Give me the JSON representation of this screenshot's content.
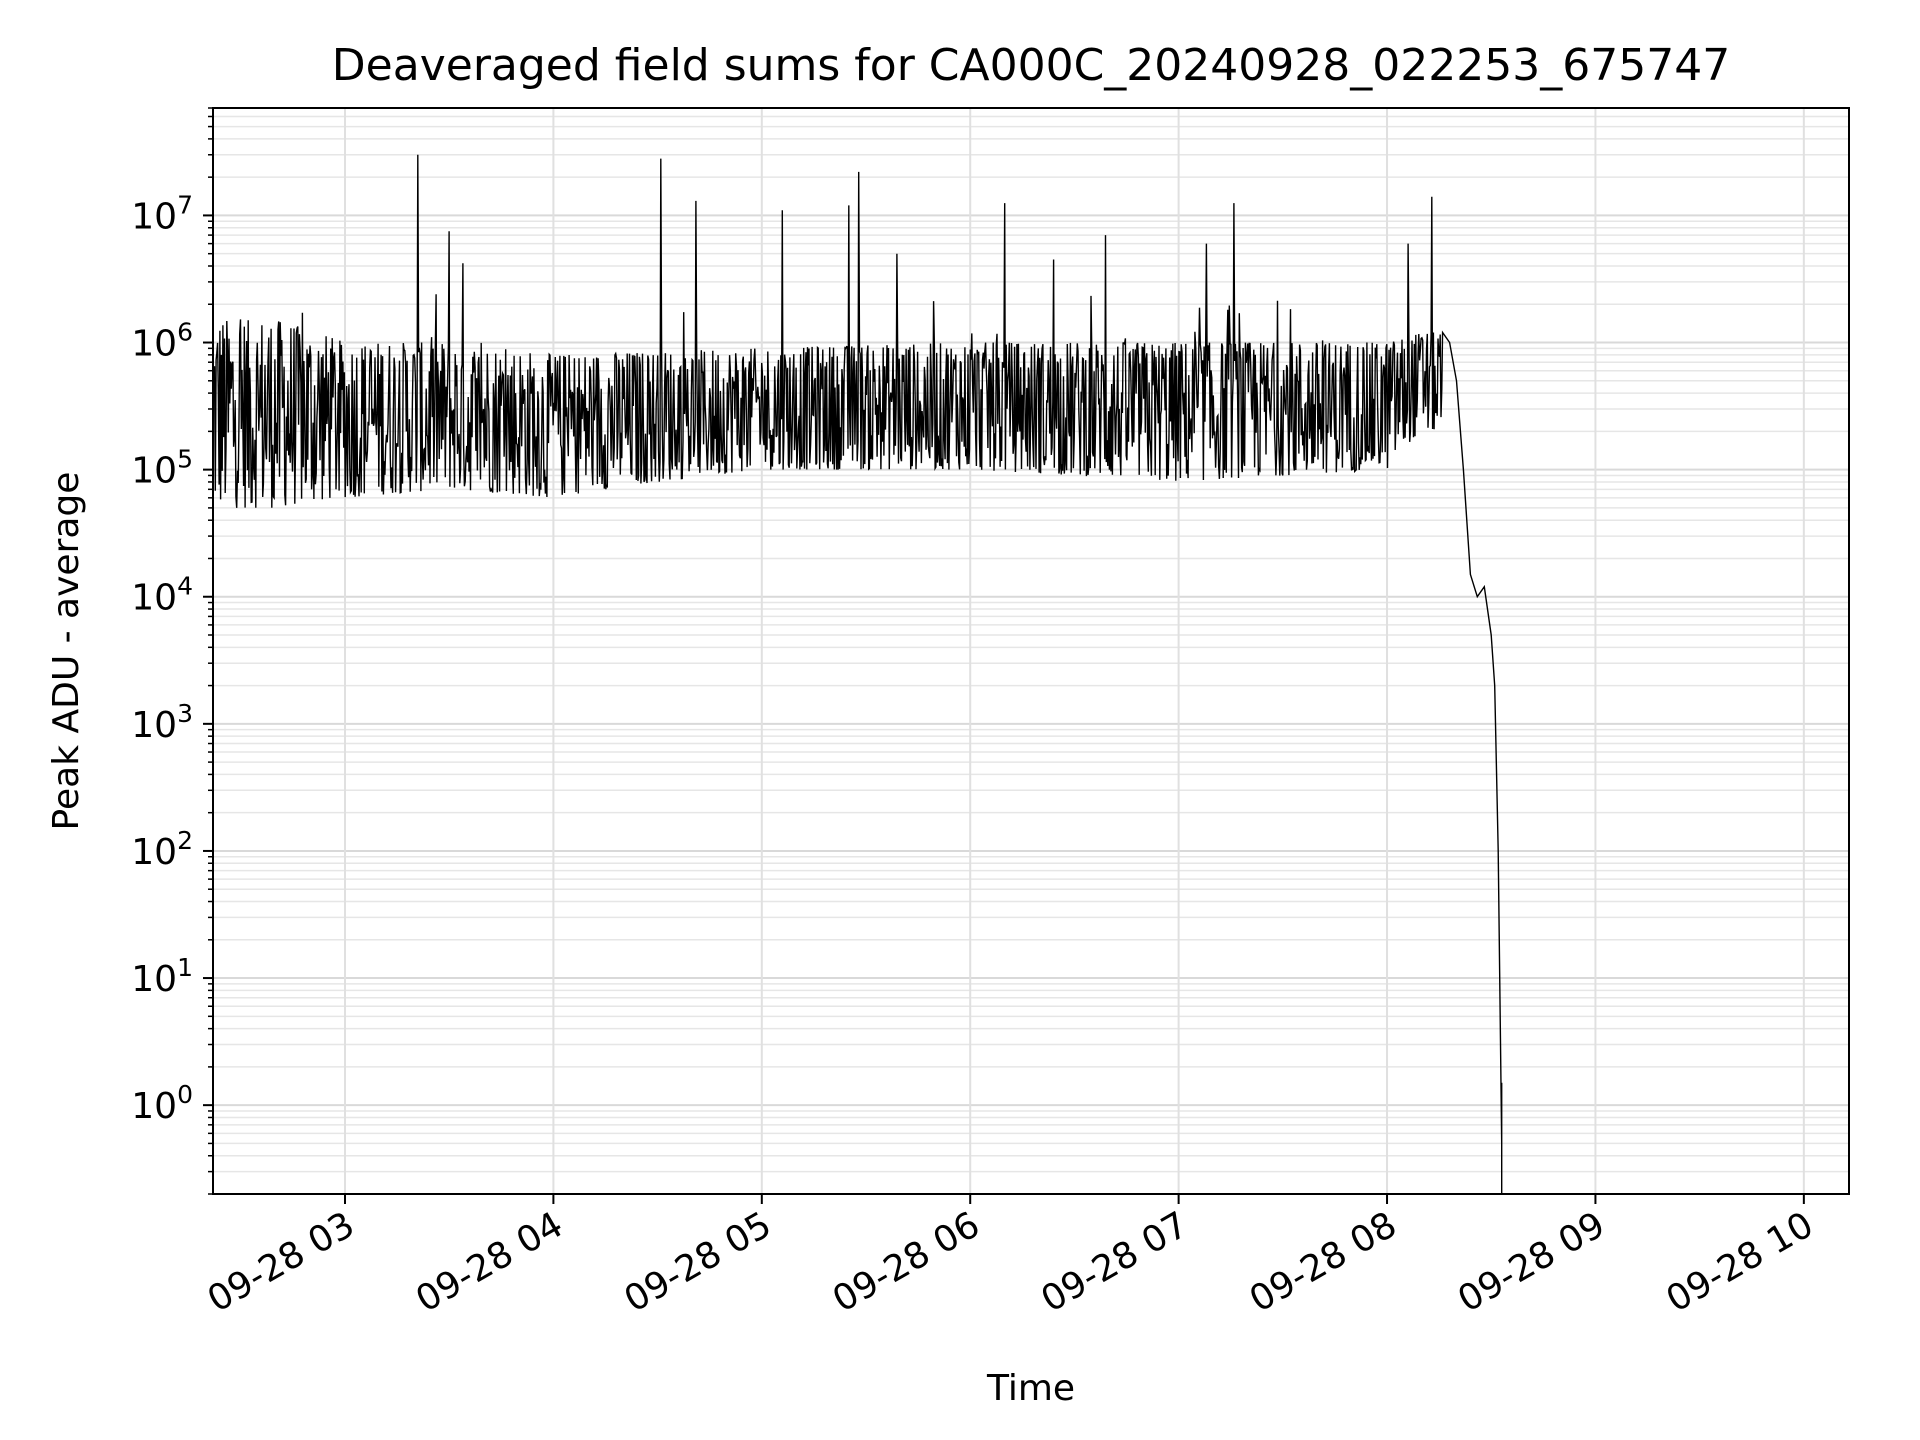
{
  "chart_data": {
    "type": "line",
    "title": "Deaveraged field sums for CA000C_20240928_022253_675747",
    "xlabel": "Time",
    "ylabel": "Peak ADU - average",
    "yscale": "log",
    "ylim": [
      0.2,
      70000000
    ],
    "xlim": [
      "2024-09-28 02:22",
      "2024-09-28 10:13"
    ],
    "grid": true,
    "line_color": "#000000",
    "x_ticks": [
      {
        "label": "09-28 03",
        "t": "2024-09-28 03:00"
      },
      {
        "label": "09-28 04",
        "t": "2024-09-28 04:00"
      },
      {
        "label": "09-28 05",
        "t": "2024-09-28 05:00"
      },
      {
        "label": "09-28 06",
        "t": "2024-09-28 06:00"
      },
      {
        "label": "09-28 07",
        "t": "2024-09-28 07:00"
      },
      {
        "label": "09-28 08",
        "t": "2024-09-28 08:00"
      },
      {
        "label": "09-28 09",
        "t": "2024-09-28 09:00"
      },
      {
        "label": "09-28 10",
        "t": "2024-09-28 10:00"
      }
    ],
    "y_ticks": [
      {
        "base": "10",
        "exp": "0",
        "value": 1
      },
      {
        "base": "10",
        "exp": "1",
        "value": 10
      },
      {
        "base": "10",
        "exp": "2",
        "value": 100
      },
      {
        "base": "10",
        "exp": "3",
        "value": 1000
      },
      {
        "base": "10",
        "exp": "4",
        "value": 10000
      },
      {
        "base": "10",
        "exp": "5",
        "value": 100000
      },
      {
        "base": "10",
        "exp": "6",
        "value": 1000000
      },
      {
        "base": "10",
        "exp": "7",
        "value": 10000000
      }
    ],
    "series": [
      {
        "base_level": [
          {
            "t": "2024-09-28 02:22",
            "lo": 50000,
            "hi": 1500000
          },
          {
            "t": "2024-09-28 02:40",
            "lo": 50000,
            "hi": 1500000
          },
          {
            "t": "2024-09-28 03:00",
            "lo": 60000,
            "hi": 1000000
          },
          {
            "t": "2024-09-28 03:30",
            "lo": 70000,
            "hi": 1000000
          },
          {
            "t": "2024-09-28 04:00",
            "lo": 60000,
            "hi": 800000
          },
          {
            "t": "2024-09-28 05:00",
            "lo": 100000,
            "hi": 900000
          },
          {
            "t": "2024-09-28 06:00",
            "lo": 100000,
            "hi": 1000000
          },
          {
            "t": "2024-09-28 07:00",
            "lo": 80000,
            "hi": 1000000
          },
          {
            "t": "2024-09-28 08:00",
            "lo": 100000,
            "hi": 1000000
          },
          {
            "t": "2024-09-28 08:10",
            "lo": 200000,
            "hi": 1200000
          }
        ],
        "spikes": [
          {
            "t": "2024-09-28 03:21",
            "y": 30000000
          },
          {
            "t": "2024-09-28 03:30",
            "y": 7500000
          },
          {
            "t": "2024-09-28 03:34",
            "y": 4200000
          },
          {
            "t": "2024-09-28 04:31",
            "y": 28000000
          },
          {
            "t": "2024-09-28 04:41",
            "y": 13000000
          },
          {
            "t": "2024-09-28 05:06",
            "y": 11000000
          },
          {
            "t": "2024-09-28 05:25",
            "y": 12000000
          },
          {
            "t": "2024-09-28 05:28",
            "y": 22000000
          },
          {
            "t": "2024-09-28 05:39",
            "y": 5000000
          },
          {
            "t": "2024-09-28 06:10",
            "y": 12500000
          },
          {
            "t": "2024-09-28 06:24",
            "y": 4500000
          },
          {
            "t": "2024-09-28 06:39",
            "y": 7000000
          },
          {
            "t": "2024-09-28 07:08",
            "y": 6000000
          },
          {
            "t": "2024-09-28 07:16",
            "y": 12500000
          },
          {
            "t": "2024-09-28 08:06",
            "y": 6000000
          },
          {
            "t": "2024-09-28 08:13",
            "y": 14000000
          }
        ],
        "decay": [
          {
            "t": "2024-09-28 08:16",
            "y": 1200000
          },
          {
            "t": "2024-09-28 08:18",
            "y": 1000000
          },
          {
            "t": "2024-09-28 08:20",
            "y": 500000
          },
          {
            "t": "2024-09-28 08:22",
            "y": 100000
          },
          {
            "t": "2024-09-28 08:24",
            "y": 15000
          },
          {
            "t": "2024-09-28 08:26",
            "y": 10000
          },
          {
            "t": "2024-09-28 08:28",
            "y": 12000
          },
          {
            "t": "2024-09-28 08:30",
            "y": 5000
          },
          {
            "t": "2024-09-28 08:31",
            "y": 2000
          },
          {
            "t": "2024-09-28 08:32",
            "y": 100
          },
          {
            "t": "2024-09-28 08:33",
            "y": 0.5
          },
          {
            "t": "2024-09-28 08:33",
            "y": 1.5
          }
        ]
      }
    ]
  }
}
